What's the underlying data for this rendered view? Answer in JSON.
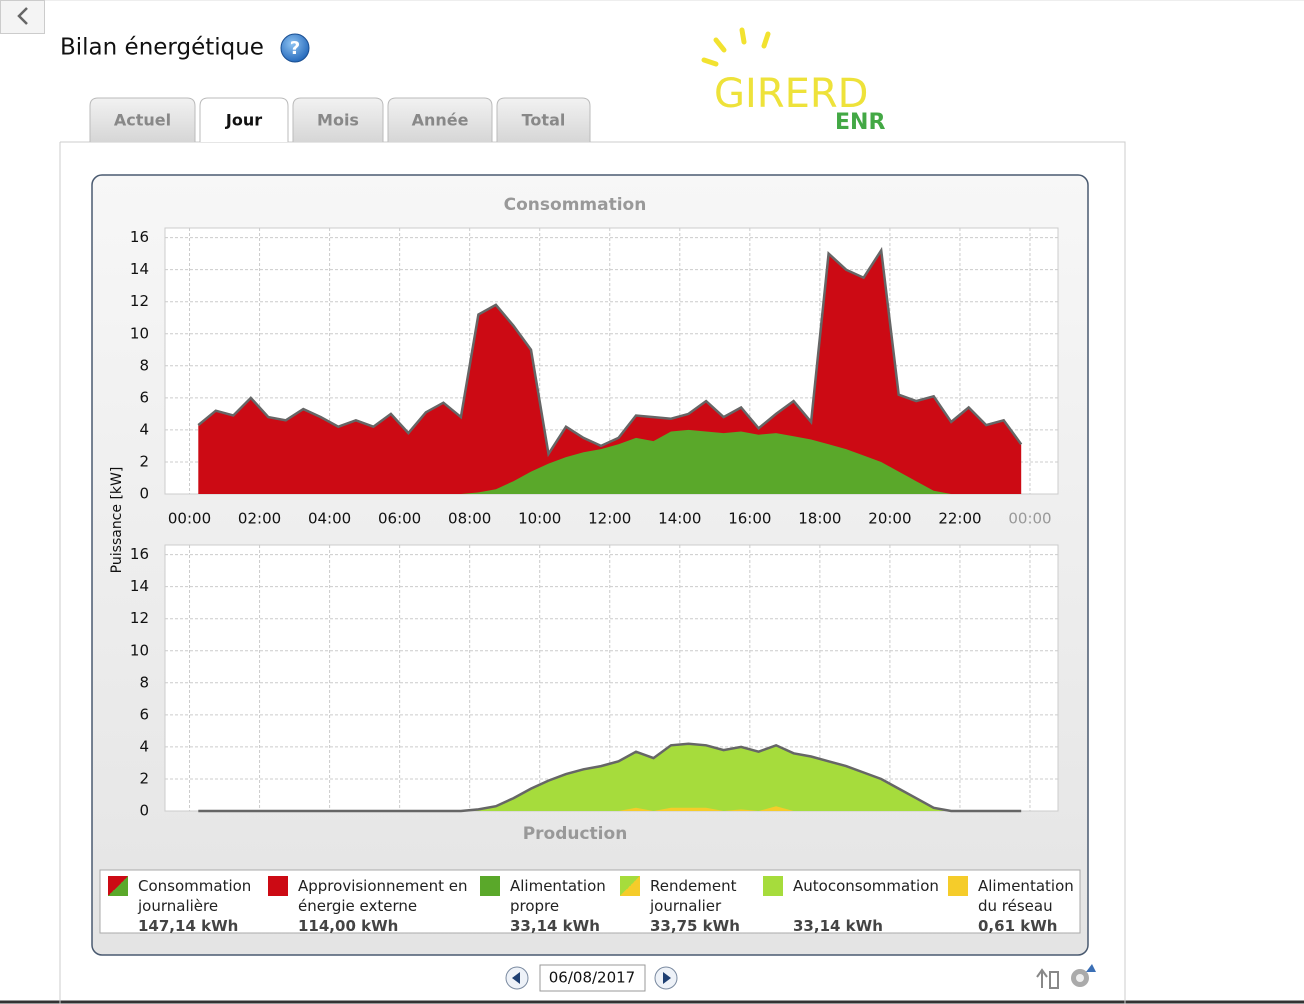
{
  "header": {
    "title": "Bilan énergétique"
  },
  "tabs": {
    "items": [
      "Actuel",
      "Jour",
      "Mois",
      "Année",
      "Total"
    ],
    "active": 1
  },
  "logo": {
    "name": "GIRERD",
    "sub": "ENR"
  },
  "chart_data": [
    {
      "type": "area",
      "title": "Consommation",
      "ylabel": "Puissance [kW]",
      "x": [
        0.25,
        0.75,
        1.25,
        1.75,
        2.25,
        2.75,
        3.25,
        3.75,
        4.25,
        4.75,
        5.25,
        5.75,
        6.25,
        6.75,
        7.25,
        7.75,
        8.25,
        8.75,
        9.25,
        9.75,
        10.25,
        10.75,
        11.25,
        11.75,
        12.25,
        12.75,
        13.25,
        13.75,
        14.25,
        14.75,
        15.25,
        15.75,
        16.25,
        16.75,
        17.25,
        17.75,
        18.25,
        18.75,
        19.25,
        19.75,
        20.25,
        20.75,
        21.25,
        21.75,
        22.25,
        22.75,
        23.25,
        23.75
      ],
      "series": [
        {
          "color": "#cc0a14",
          "outline": "#666666",
          "values": [
            4.3,
            5.2,
            4.9,
            6.0,
            4.8,
            4.6,
            5.3,
            4.8,
            4.2,
            4.6,
            4.2,
            5.0,
            3.8,
            5.1,
            5.7,
            4.8,
            11.2,
            11.8,
            10.5,
            9.0,
            2.5,
            4.2,
            3.5,
            3.0,
            3.5,
            4.9,
            4.8,
            4.7,
            5.0,
            5.8,
            4.8,
            5.4,
            4.1,
            5.0,
            5.8,
            4.5,
            15.0,
            14.0,
            13.5,
            15.2,
            6.2,
            5.8,
            6.1,
            4.5,
            5.4,
            4.3,
            4.6,
            3.1
          ]
        },
        {
          "color": "#5aa82a",
          "values": [
            0,
            0,
            0,
            0,
            0,
            0,
            0,
            0,
            0,
            0,
            0,
            0,
            0,
            0,
            0,
            0,
            0.1,
            0.3,
            0.8,
            1.4,
            1.9,
            2.3,
            2.6,
            2.8,
            3.1,
            3.5,
            3.3,
            3.9,
            4.0,
            3.9,
            3.8,
            3.9,
            3.7,
            3.8,
            3.6,
            3.4,
            3.1,
            2.8,
            2.4,
            2.0,
            1.4,
            0.8,
            0.2,
            0,
            0,
            0,
            0,
            0
          ]
        }
      ],
      "xlim": [
        -0.7,
        24.8
      ],
      "ylim": [
        0,
        16.6
      ],
      "xticks": [
        {
          "value": 0,
          "label": "00:00"
        },
        {
          "value": 2,
          "label": "02:00"
        },
        {
          "value": 4,
          "label": "04:00"
        },
        {
          "value": 6,
          "label": "06:00"
        },
        {
          "value": 8,
          "label": "08:00"
        },
        {
          "value": 10,
          "label": "10:00"
        },
        {
          "value": 12,
          "label": "12:00"
        },
        {
          "value": 14,
          "label": "14:00"
        },
        {
          "value": 16,
          "label": "16:00"
        },
        {
          "value": 18,
          "label": "18:00"
        },
        {
          "value": 20,
          "label": "20:00"
        },
        {
          "value": 22,
          "label": "22:00"
        },
        {
          "value": 24,
          "label": "00:00"
        }
      ],
      "yticks": [
        0,
        2,
        4,
        6,
        8,
        10,
        12,
        14,
        16
      ],
      "grid": true
    },
    {
      "type": "area",
      "title": "Production",
      "x": [
        0.25,
        0.75,
        1.25,
        1.75,
        2.25,
        2.75,
        3.25,
        3.75,
        4.25,
        4.75,
        5.25,
        5.75,
        6.25,
        6.75,
        7.25,
        7.75,
        8.25,
        8.75,
        9.25,
        9.75,
        10.25,
        10.75,
        11.25,
        11.75,
        12.25,
        12.75,
        13.25,
        13.75,
        14.25,
        14.75,
        15.25,
        15.75,
        16.25,
        16.75,
        17.25,
        17.75,
        18.25,
        18.75,
        19.25,
        19.75,
        20.25,
        20.75,
        21.25,
        21.75,
        22.25,
        22.75,
        23.25,
        23.75
      ],
      "series": [
        {
          "color": "#a6dc3c",
          "outline": "#666666",
          "values": [
            0,
            0,
            0,
            0,
            0,
            0,
            0,
            0,
            0,
            0,
            0,
            0,
            0,
            0,
            0,
            0,
            0.1,
            0.3,
            0.8,
            1.4,
            1.9,
            2.3,
            2.6,
            2.8,
            3.1,
            3.7,
            3.3,
            4.1,
            4.2,
            4.1,
            3.8,
            4.0,
            3.7,
            4.1,
            3.6,
            3.4,
            3.1,
            2.8,
            2.4,
            2.0,
            1.4,
            0.8,
            0.2,
            0,
            0,
            0,
            0,
            0
          ]
        },
        {
          "color": "#f5cc2a",
          "values": [
            0,
            0,
            0,
            0,
            0,
            0,
            0,
            0,
            0,
            0,
            0,
            0,
            0,
            0,
            0,
            0,
            0,
            0,
            0,
            0,
            0,
            0,
            0,
            0,
            0,
            0.2,
            0,
            0.2,
            0.2,
            0.2,
            0,
            0.1,
            0,
            0.3,
            0,
            0,
            0,
            0,
            0,
            0,
            0,
            0,
            0,
            0,
            0,
            0,
            0,
            0
          ]
        }
      ],
      "xlim": [
        -0.7,
        24.8
      ],
      "ylim": [
        0,
        16.6
      ],
      "xticks": [
        0,
        2,
        4,
        6,
        8,
        10,
        12,
        14,
        16,
        18,
        20,
        22,
        24
      ],
      "yticks": [
        0,
        2,
        4,
        6,
        8,
        10,
        12,
        14,
        16
      ],
      "grid": true
    }
  ],
  "legend": {
    "items": [
      {
        "label": "Consommation journalière",
        "total": "147,14 kWh",
        "colors": [
          "#cc0a14",
          "#5aa82a"
        ]
      },
      {
        "label": "Approvisionnement en énergie externe",
        "total": "114,00 kWh",
        "colors": [
          "#cc0a14"
        ]
      },
      {
        "label": "Alimentation propre",
        "total": "33,14 kWh",
        "colors": [
          "#5aa82a"
        ]
      },
      {
        "label": "Rendement journalier",
        "total": "33,75 kWh",
        "colors": [
          "#a6dc3c",
          "#f5cc2a"
        ]
      },
      {
        "label": "Autoconsommation",
        "total": "33,14 kWh",
        "colors": [
          "#a6dc3c"
        ]
      },
      {
        "label": "Alimentation du réseau",
        "total": "0,61 kWh",
        "colors": [
          "#f5cc2a"
        ]
      }
    ]
  },
  "footer": {
    "date": "06/08/2017"
  }
}
